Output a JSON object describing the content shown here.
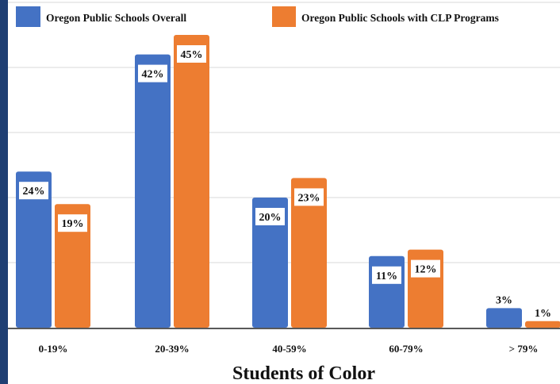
{
  "colors": {
    "overall": "#4472c4",
    "clp": "#ed7d31",
    "side_bar": "#1f3f73",
    "grid": "#d9d9d9",
    "axis": "#595959"
  },
  "chart_data": {
    "type": "bar",
    "categories": [
      "0-19%",
      "20-39%",
      "40-59%",
      "60-79%",
      "> 79%"
    ],
    "series": [
      {
        "name": "Oregon Public Schools Overall",
        "values": [
          24,
          42,
          20,
          11,
          3
        ],
        "labels": [
          "24%",
          "42%",
          "20%",
          "11%",
          "3%"
        ]
      },
      {
        "name": "Oregon Public Schools with CLP Programs",
        "values": [
          19,
          45,
          23,
          12,
          1
        ],
        "labels": [
          "19%",
          "45%",
          "23%",
          "12%",
          "1%"
        ]
      }
    ],
    "title": "",
    "xlabel": "Students of Color",
    "ylabel": "",
    "ylim": [
      0,
      50
    ],
    "grid": true,
    "legend": "top"
  }
}
